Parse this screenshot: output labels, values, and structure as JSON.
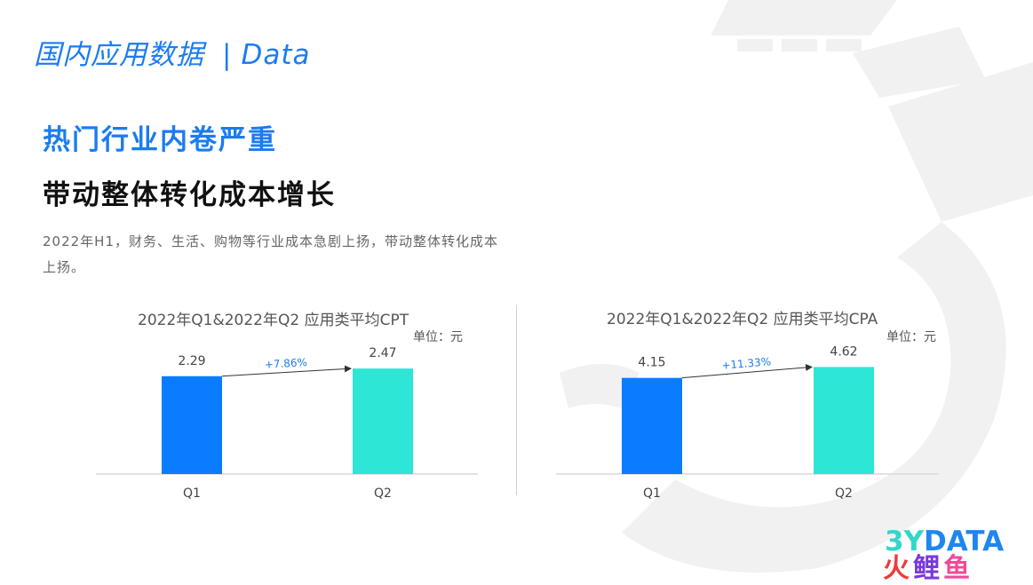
{
  "header": {
    "title": "国内应用数据",
    "separator": "|",
    "subtitle": "Data"
  },
  "headline": {
    "line1": "热门行业内卷严重",
    "line2": "带动整体转化成本增长"
  },
  "description": "2022年H1，财务、生活、购物等行业成本急剧上扬，带动整体转化成本上扬。",
  "colors": {
    "accent": "#1a7cf0",
    "bar_q1": "#0a7cff",
    "bar_q2": "#2ee6d6",
    "growth_label": "#1a7cf0"
  },
  "chart_data": [
    {
      "type": "bar",
      "title": "2022年Q1&2022年Q2 应用类平均CPT",
      "unit": "单位：元",
      "categories": [
        "Q1",
        "Q2"
      ],
      "values": [
        2.29,
        2.47
      ],
      "value_labels": [
        "2.29",
        "2.47"
      ],
      "growth_label": "+7.86%",
      "ylim": [
        0,
        3.2
      ]
    },
    {
      "type": "bar",
      "title": "2022年Q1&2022年Q2 应用类平均CPA",
      "unit": "单位：元",
      "categories": [
        "Q1",
        "Q2"
      ],
      "values": [
        4.15,
        4.62
      ],
      "value_labels": [
        "4.15",
        "4.62"
      ],
      "growth_label": "+11.33%",
      "ylim": [
        0,
        5.9
      ]
    }
  ],
  "logo": {
    "line1_a": "3Y",
    "line1_b": "DATA",
    "line2_a": "火",
    "line2_b": "鲤",
    "line2_c": "鱼"
  }
}
